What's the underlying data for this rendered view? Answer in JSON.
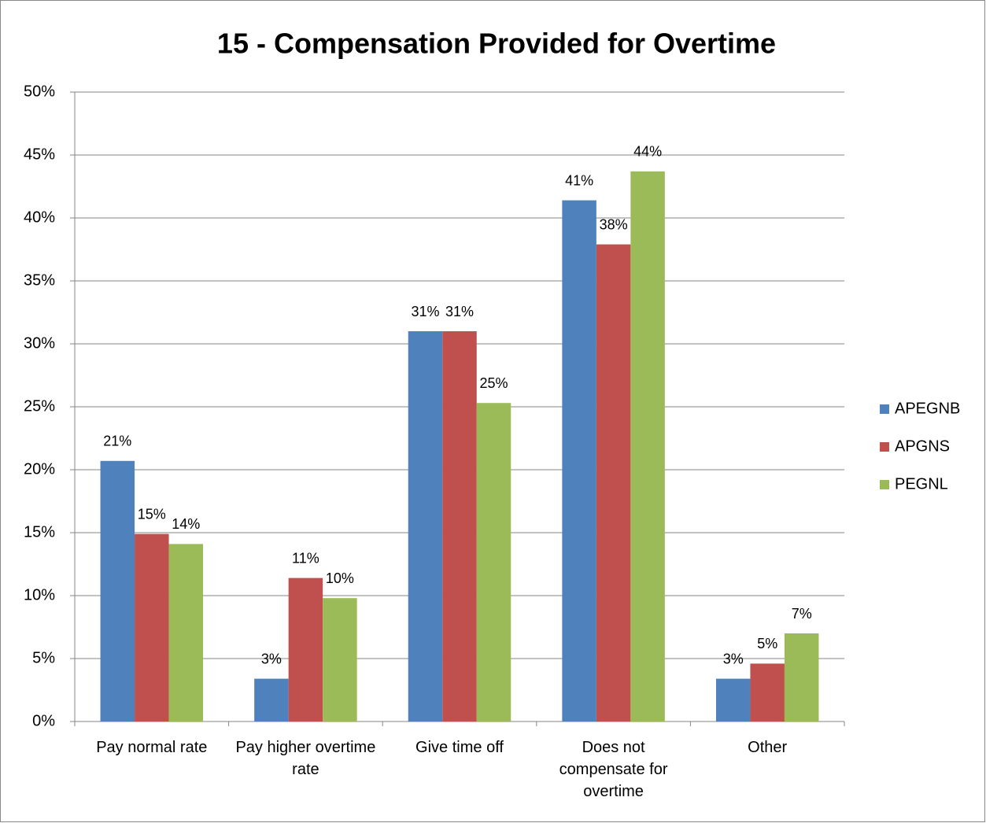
{
  "chart_data": {
    "type": "bar",
    "title": "15 - Compensation Provided for Overtime",
    "categories": [
      "Pay normal rate",
      "Pay higher overtime rate",
      "Give time off",
      "Does not compensate for overtime",
      "Other"
    ],
    "series": [
      {
        "name": "APEGNB",
        "color": "#4f81bd",
        "values": [
          20.7,
          3.4,
          31.0,
          41.4,
          3.4
        ],
        "value_labels": [
          "21%",
          "3%",
          "31%",
          "41%",
          "3%"
        ]
      },
      {
        "name": "APGNS",
        "color": "#c0504d",
        "values": [
          14.9,
          11.4,
          31.0,
          37.9,
          4.6
        ],
        "value_labels": [
          "15%",
          "11%",
          "31%",
          "38%",
          "5%"
        ]
      },
      {
        "name": "PEGNL",
        "color": "#9bbb59",
        "values": [
          14.1,
          9.8,
          25.3,
          43.7,
          7.0
        ],
        "value_labels": [
          "14%",
          "10%",
          "25%",
          "44%",
          "7%"
        ]
      }
    ],
    "ylim": [
      0,
      50
    ],
    "yticks": [
      {
        "value": 0,
        "label": "0%"
      },
      {
        "value": 5,
        "label": "5%"
      },
      {
        "value": 10,
        "label": "10%"
      },
      {
        "value": 15,
        "label": "15%"
      },
      {
        "value": 20,
        "label": "20%"
      },
      {
        "value": 25,
        "label": "25%"
      },
      {
        "value": 30,
        "label": "30%"
      },
      {
        "value": 35,
        "label": "35%"
      },
      {
        "value": 40,
        "label": "40%"
      },
      {
        "value": 45,
        "label": "45%"
      },
      {
        "value": 50,
        "label": "50%"
      }
    ],
    "grid": true,
    "legend": "right"
  }
}
